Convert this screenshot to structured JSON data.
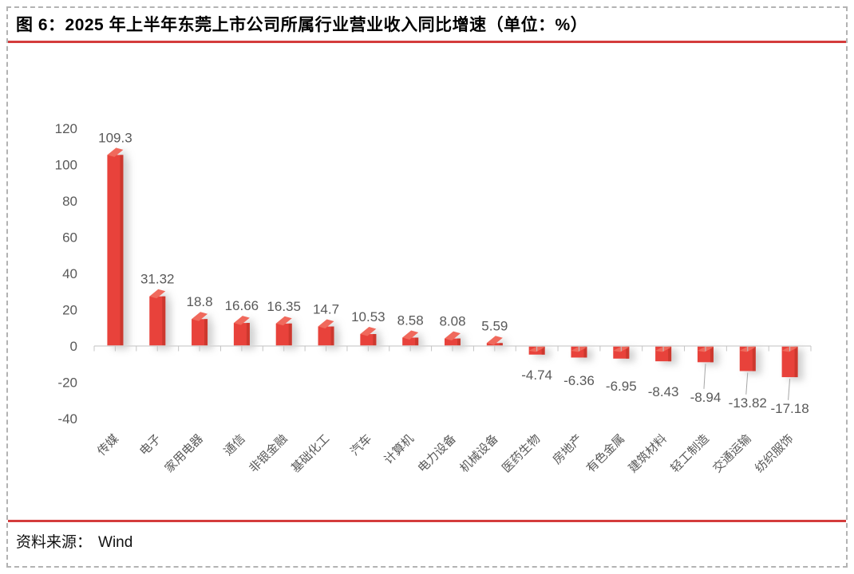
{
  "header": {
    "title": "图 6：2025 年上半年东莞上市公司所属行业营业收入同比增速（单位：%）"
  },
  "footer": {
    "label": "资料来源：",
    "source": "Wind"
  },
  "colors": {
    "bar": "#e8423a",
    "bar_cap": "#f0695b",
    "bar_side": "#cd372f",
    "accent_line": "#d43c3c",
    "axis_text": "#595959",
    "axis_line": "#d6d6d6",
    "tick": "#c4c4c4",
    "leader": "#a6a6a6",
    "shadow": "#9a9a9a"
  },
  "chart_data": {
    "type": "bar",
    "title": "2025 年上半年东莞上市公司所属行业营业收入同比增速（单位：%）",
    "categories": [
      "传媒",
      "电子",
      "家用电器",
      "通信",
      "非银金融",
      "基础化工",
      "汽车",
      "计算机",
      "电力设备",
      "机械设备",
      "医药生物",
      "房地产",
      "有色金属",
      "建筑材料",
      "轻工制造",
      "交通运输",
      "纺织服饰"
    ],
    "values": [
      109.3,
      31.32,
      18.8,
      16.66,
      16.35,
      14.7,
      10.53,
      8.58,
      8.08,
      5.59,
      -4.74,
      -6.36,
      -6.95,
      -8.43,
      -8.94,
      -13.82,
      -17.18
    ],
    "value_labels": [
      "109.3",
      "31.32",
      "18.8",
      "16.66",
      "16.35",
      "14.7",
      "10.53",
      "8.58",
      "8.08",
      "5.59",
      "-4.74",
      "-6.36",
      "-6.95",
      "-8.43",
      "-8.94",
      "-13.82",
      "-17.18"
    ],
    "y_ticks": [
      120,
      100,
      80,
      60,
      40,
      20,
      0,
      -20,
      -40
    ],
    "ylim": [
      -40,
      120
    ],
    "xlabel": "",
    "ylabel": "",
    "grid": false,
    "legend": "none",
    "bar_style": "3d-red"
  }
}
